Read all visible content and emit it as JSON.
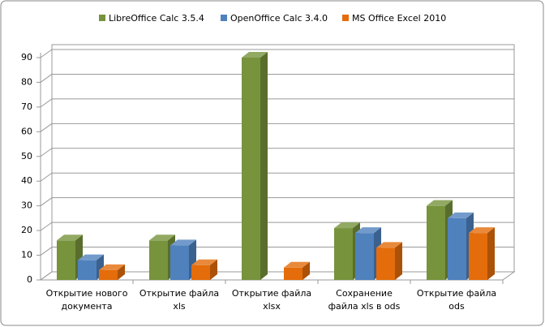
{
  "chart_data": {
    "type": "bar3d",
    "categories": [
      "Открытие нового документа",
      "Открытие файла xls",
      "Открытие файла xlsx",
      "Сохранение файла xls в ods",
      "Открытие файла ods"
    ],
    "series": [
      {
        "name": "LibreOffice Calc 3.5.4",
        "color": "#77933c",
        "values": [
          16,
          16,
          90,
          21,
          30
        ]
      },
      {
        "name": "OpenOffice Calc 3.4.0",
        "color": "#4f81bd",
        "values": [
          8,
          14,
          null,
          19,
          25
        ]
      },
      {
        "name": "MS Office Excel 2010",
        "color": "#e46c0a",
        "values": [
          4,
          6,
          5,
          13,
          19
        ]
      }
    ],
    "ylim": [
      0,
      90
    ],
    "yticks": [
      0,
      10,
      20,
      30,
      40,
      50,
      60,
      70,
      80,
      90
    ],
    "grid": true,
    "legend": "top"
  }
}
